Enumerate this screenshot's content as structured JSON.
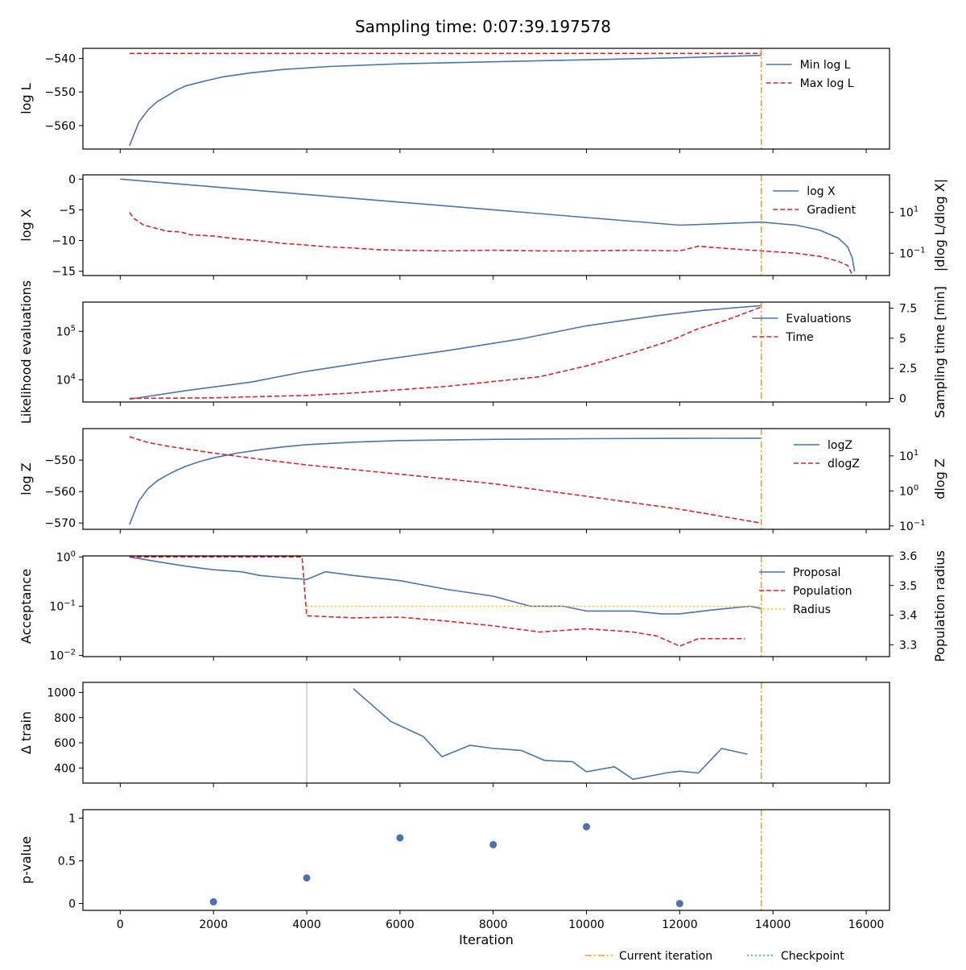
{
  "title": "Sampling time: 0:07:39.197578",
  "colors": {
    "blue": "#4c72b0",
    "red": "#d62728",
    "orange": "#ff9f0e",
    "yellow": "#f5c400",
    "cyan": "#17becf",
    "gray": "#c8c8c8"
  },
  "global_legend": {
    "items": [
      "Current iteration",
      "Checkpoint"
    ]
  },
  "chart_data": [
    {
      "type": "line",
      "ylabel": "log L",
      "xlim": [
        -800,
        16500
      ],
      "ylim": [
        -567,
        -537
      ],
      "yticks": [
        -540,
        -550,
        -560
      ],
      "current_iteration": 13750,
      "legend": [
        "Min log L",
        "Max log L"
      ],
      "series": [
        {
          "name": "Min log L",
          "x": [
            200,
            400,
            600,
            800,
            1000,
            1200,
            1400,
            1800,
            2200,
            2800,
            3500,
            4500,
            6000,
            8000,
            10000,
            12000,
            13500,
            13750
          ],
          "y": [
            -566,
            -559,
            -555.3,
            -552.8,
            -551.2,
            -549.5,
            -548.2,
            -546.8,
            -545.5,
            -544.3,
            -543.3,
            -542.4,
            -541.6,
            -541,
            -540.4,
            -539.8,
            -539.2,
            -539.1
          ]
        },
        {
          "name": "Max log L",
          "x": [
            200,
            13750
          ],
          "y": [
            -538.5,
            -538.5
          ]
        }
      ]
    },
    {
      "type": "line",
      "ylabel": "log X",
      "ylabel_right": "|dlog L/dlog X|",
      "xlim": [
        -800,
        16500
      ],
      "ylim": [
        -15.7,
        0.7
      ],
      "yticks": [
        0,
        -5,
        -10,
        -15
      ],
      "y2_log": true,
      "y2lim": [
        0.008,
        700
      ],
      "y2ticks": [
        "10^1",
        "10^-1"
      ],
      "current_iteration": 13750,
      "legend": [
        "log X",
        "Gradient"
      ],
      "series": [
        {
          "name": "log X",
          "x": [
            0,
            2000,
            4000,
            6000,
            8000,
            10000,
            12000,
            13750,
            14500,
            15000,
            15400,
            15600,
            15700,
            15750
          ],
          "y": [
            0,
            -1.25,
            -2.5,
            -3.75,
            -5,
            -6.25,
            -7.5,
            -7,
            -7.5,
            -8.3,
            -9.6,
            -11,
            -12.8,
            -15
          ]
        },
        {
          "name": "Gradient",
          "x": [
            200,
            300,
            500,
            800,
            1000,
            1300,
            1500,
            2000,
            2500,
            3000,
            3500,
            4000,
            4500,
            5000,
            5500,
            6000,
            7000,
            8000,
            9000,
            10000,
            11000,
            12000,
            12400,
            13000,
            13750,
            14500,
            15000,
            15400,
            15600,
            15700
          ],
          "y": [
            10,
            5,
            2.4,
            1.6,
            1.2,
            1.1,
            0.8,
            0.7,
            0.5,
            0.4,
            0.3,
            0.25,
            0.2,
            0.18,
            0.15,
            0.14,
            0.13,
            0.14,
            0.13,
            0.13,
            0.14,
            0.13,
            0.22,
            0.17,
            0.13,
            0.1,
            0.07,
            0.04,
            0.025,
            0.009
          ]
        }
      ]
    },
    {
      "type": "line",
      "ylabel": "Likelihood evaluations",
      "ylabel_right": "Sampling time [min]",
      "xlim": [
        -800,
        16500
      ],
      "y_log": true,
      "ylim": [
        3500,
        400000
      ],
      "yticks": [
        "10^4",
        "10^5"
      ],
      "y2lim": [
        -0.3,
        8.0
      ],
      "y2ticks": [
        0.0,
        2.5,
        5.0,
        7.5
      ],
      "current_iteration": 13750,
      "legend": [
        "Evaluations",
        "Time"
      ],
      "series": [
        {
          "name": "Evaluations",
          "x": [
            200,
            1400,
            2800,
            4000,
            5500,
            7000,
            8600,
            10000,
            11500,
            12500,
            13750
          ],
          "y": [
            4000,
            6000,
            9000,
            15000,
            25000,
            40000,
            70000,
            130000,
            210000,
            270000,
            340000
          ]
        },
        {
          "name": "Time",
          "x": [
            200,
            2000,
            4000,
            5000,
            7000,
            8000,
            9000,
            10000,
            11000,
            11800,
            12400,
            13000,
            13750
          ],
          "y": [
            0,
            0.05,
            0.25,
            0.45,
            1.0,
            1.4,
            1.8,
            2.7,
            3.8,
            4.8,
            5.8,
            6.5,
            7.6
          ]
        }
      ]
    },
    {
      "type": "line",
      "ylabel": "log Z",
      "ylabel_right": "dlog Z",
      "xlim": [
        -800,
        16500
      ],
      "ylim": [
        -572,
        -540
      ],
      "yticks": [
        -550,
        -560,
        -570
      ],
      "y2_log": true,
      "y2lim": [
        0.08,
        60
      ],
      "y2ticks": [
        "10^1",
        "10^0",
        "10^-1"
      ],
      "current_iteration": 13750,
      "legend": [
        "logZ",
        "dlogZ"
      ],
      "series": [
        {
          "name": "logZ",
          "x": [
            200,
            400,
            600,
            800,
            1000,
            1200,
            1400,
            1700,
            2000,
            2500,
            3000,
            3500,
            4000,
            5000,
            6000,
            8000,
            10000,
            12000,
            13750
          ],
          "y": [
            -570.5,
            -563,
            -559,
            -556.5,
            -554.8,
            -553.3,
            -552,
            -550.5,
            -549.3,
            -547.8,
            -546.7,
            -545.8,
            -545.1,
            -544.3,
            -543.8,
            -543.4,
            -543.2,
            -543.1,
            -543.05
          ]
        },
        {
          "name": "dlogZ",
          "x": [
            200,
            600,
            1000,
            2000,
            3000,
            4000,
            6000,
            8000,
            10000,
            12000,
            13750
          ],
          "y": [
            35,
            24,
            19,
            12,
            8,
            5.5,
            3,
            1.6,
            0.7,
            0.3,
            0.12
          ]
        }
      ]
    },
    {
      "type": "line",
      "ylabel": "Acceptance",
      "ylabel_right": "Population radius",
      "xlim": [
        -800,
        16500
      ],
      "y_log": true,
      "ylim": [
        0.0095,
        1.05
      ],
      "yticks": [
        "10^0",
        "10^-1",
        "10^-2"
      ],
      "y2lim": [
        3.26,
        3.6
      ],
      "y2ticks": [
        3.6,
        3.5,
        3.4,
        3.3
      ],
      "current_iteration": 13750,
      "legend": [
        "Proposal",
        "Population",
        "Radius"
      ],
      "series": [
        {
          "name": "Proposal",
          "x": [
            200,
            800,
            1400,
            2000,
            2600,
            3000,
            3500,
            4000,
            4400,
            5000,
            6000,
            7000,
            8000,
            8800,
            9500,
            10000,
            11000,
            11600,
            12000,
            12500,
            13000,
            13500,
            13750
          ],
          "y": [
            1.0,
            0.8,
            0.65,
            0.55,
            0.5,
            0.42,
            0.38,
            0.35,
            0.5,
            0.42,
            0.33,
            0.22,
            0.16,
            0.1,
            0.1,
            0.08,
            0.08,
            0.07,
            0.07,
            0.08,
            0.09,
            0.1,
            0.09
          ]
        },
        {
          "name": "Population",
          "x": [
            200,
            3900,
            4000,
            5000,
            6000,
            7000,
            8000,
            9000,
            10000,
            11000,
            11500,
            12000,
            12400,
            13000,
            13400
          ],
          "y": [
            1.0,
            1.0,
            0.064,
            0.058,
            0.06,
            0.05,
            0.04,
            0.03,
            0.035,
            0.03,
            0.025,
            0.0155,
            0.022,
            0.022,
            0.022
          ]
        },
        {
          "name": "Radius",
          "x": [
            4000,
            13750
          ],
          "y": [
            0.1,
            0.1
          ]
        }
      ]
    },
    {
      "type": "line",
      "ylabel": "Δ train",
      "xlim": [
        -800,
        16500
      ],
      "ylim": [
        280,
        1080
      ],
      "yticks": [
        1000,
        800,
        600,
        400
      ],
      "checkpoint_line": 4000,
      "current_iteration": 13750,
      "series": [
        {
          "name": "",
          "x": [
            5000,
            5800,
            6500,
            6900,
            7500,
            8000,
            8600,
            9100,
            9700,
            10000,
            10600,
            11000,
            11700,
            12000,
            12400,
            12900,
            13450
          ],
          "y": [
            1030,
            770,
            650,
            490,
            580,
            555,
            540,
            460,
            450,
            370,
            410,
            310,
            360,
            375,
            360,
            555,
            510
          ]
        }
      ]
    },
    {
      "type": "scatter",
      "ylabel": "p-value",
      "xlabel": "Iteration",
      "xlim": [
        -800,
        16500
      ],
      "ylim": [
        -0.08,
        1.1
      ],
      "yticks": [
        1.0,
        0.5,
        0.0
      ],
      "xticks": [
        0,
        2000,
        4000,
        6000,
        8000,
        10000,
        12000,
        14000,
        16000
      ],
      "current_iteration": 13750,
      "series": [
        {
          "name": "",
          "x": [
            2000,
            4000,
            6000,
            8000,
            10000,
            12000
          ],
          "y": [
            0.02,
            0.3,
            0.77,
            0.69,
            0.9,
            0.0
          ]
        }
      ]
    }
  ]
}
